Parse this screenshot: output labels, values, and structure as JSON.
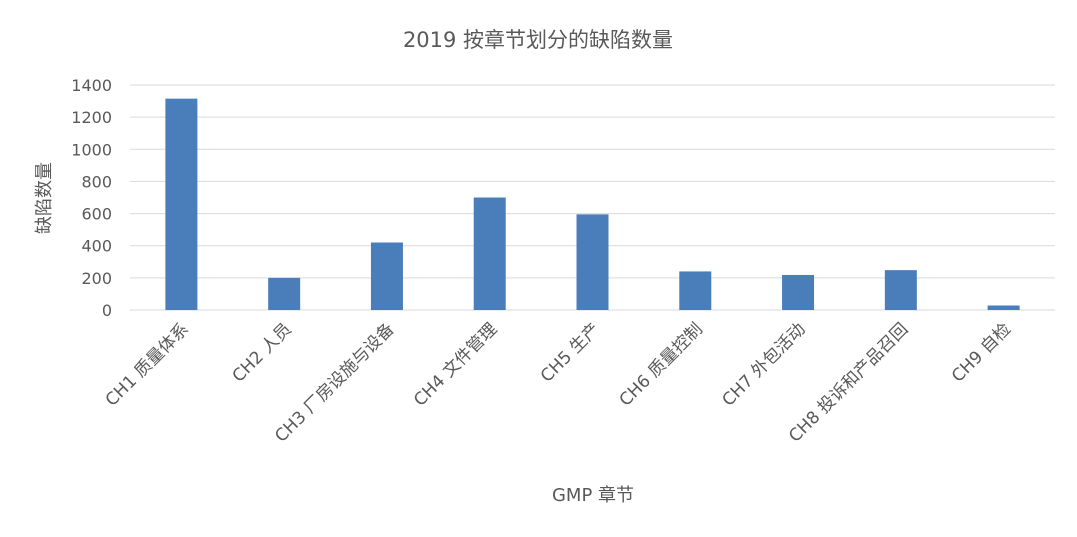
{
  "chart_data": {
    "type": "bar",
    "title": "2019 按章节划分的缺陷数量",
    "xlabel": "GMP 章节",
    "ylabel": "缺陷数量",
    "categories": [
      "CH1 质量体系",
      "CH2 人员",
      "CH3 厂房设施与设备",
      "CH4 文件管理",
      "CH5 生产",
      "CH6 质量控制",
      "CH7 外包活动",
      "CH8 投诉和产品召回",
      "CH9 自检"
    ],
    "values": [
      1315,
      200,
      420,
      700,
      595,
      240,
      218,
      248,
      28
    ],
    "ylim": [
      0,
      1400
    ],
    "yticks": [
      0,
      200,
      400,
      600,
      800,
      1000,
      1200,
      1400
    ],
    "grid": true,
    "legend": "none",
    "colors": {
      "bar": "#4a7ebb",
      "grid": "#d9d9d9",
      "text": "#595959"
    }
  }
}
